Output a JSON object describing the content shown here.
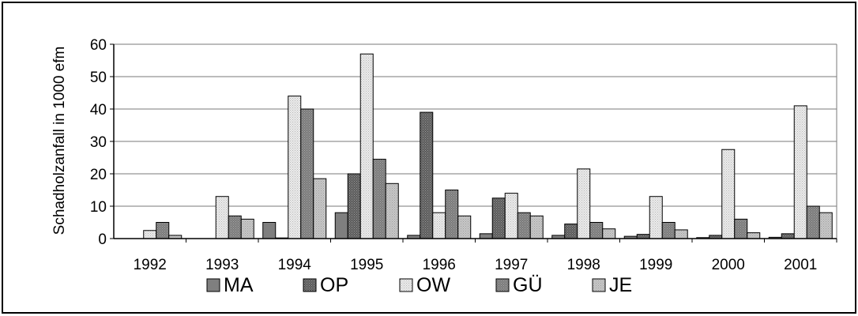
{
  "chart_data": {
    "type": "bar",
    "title": "",
    "xlabel": "",
    "ylabel": "Schadholzanfall in 1000 efm",
    "ylim": [
      0,
      60
    ],
    "yticks": [
      0,
      10,
      20,
      30,
      40,
      50,
      60
    ],
    "grid": true,
    "legend_position": "bottom",
    "categories": [
      "1992",
      "1993",
      "1994",
      "1995",
      "1996",
      "1997",
      "1998",
      "1999",
      "2000",
      "2001"
    ],
    "series": [
      {
        "name": "MA",
        "color": "#7f7f7f",
        "pattern": "solid",
        "values": [
          0,
          0,
          5,
          8,
          1,
          1.5,
          1,
          0.7,
          0.3,
          0.4
        ]
      },
      {
        "name": "OP",
        "color": "#666666",
        "pattern": "dots-dark",
        "values": [
          0,
          0,
          0.2,
          20,
          39,
          12.5,
          4.5,
          1.3,
          1,
          1.5
        ]
      },
      {
        "name": "OW",
        "color": "#e2e2e2",
        "pattern": "dots-light",
        "values": [
          2.5,
          13,
          44,
          57,
          8,
          14,
          21.5,
          13,
          27.5,
          41
        ]
      },
      {
        "name": "GÜ",
        "color": "#808080",
        "pattern": "dots-mid",
        "values": [
          5,
          7,
          40,
          24.5,
          15,
          8,
          5,
          5,
          6,
          10
        ]
      },
      {
        "name": "JE",
        "color": "#c0c0c0",
        "pattern": "dots-pale",
        "values": [
          1,
          6,
          18.5,
          17,
          7,
          7,
          3,
          2.7,
          1.8,
          8
        ]
      }
    ]
  }
}
